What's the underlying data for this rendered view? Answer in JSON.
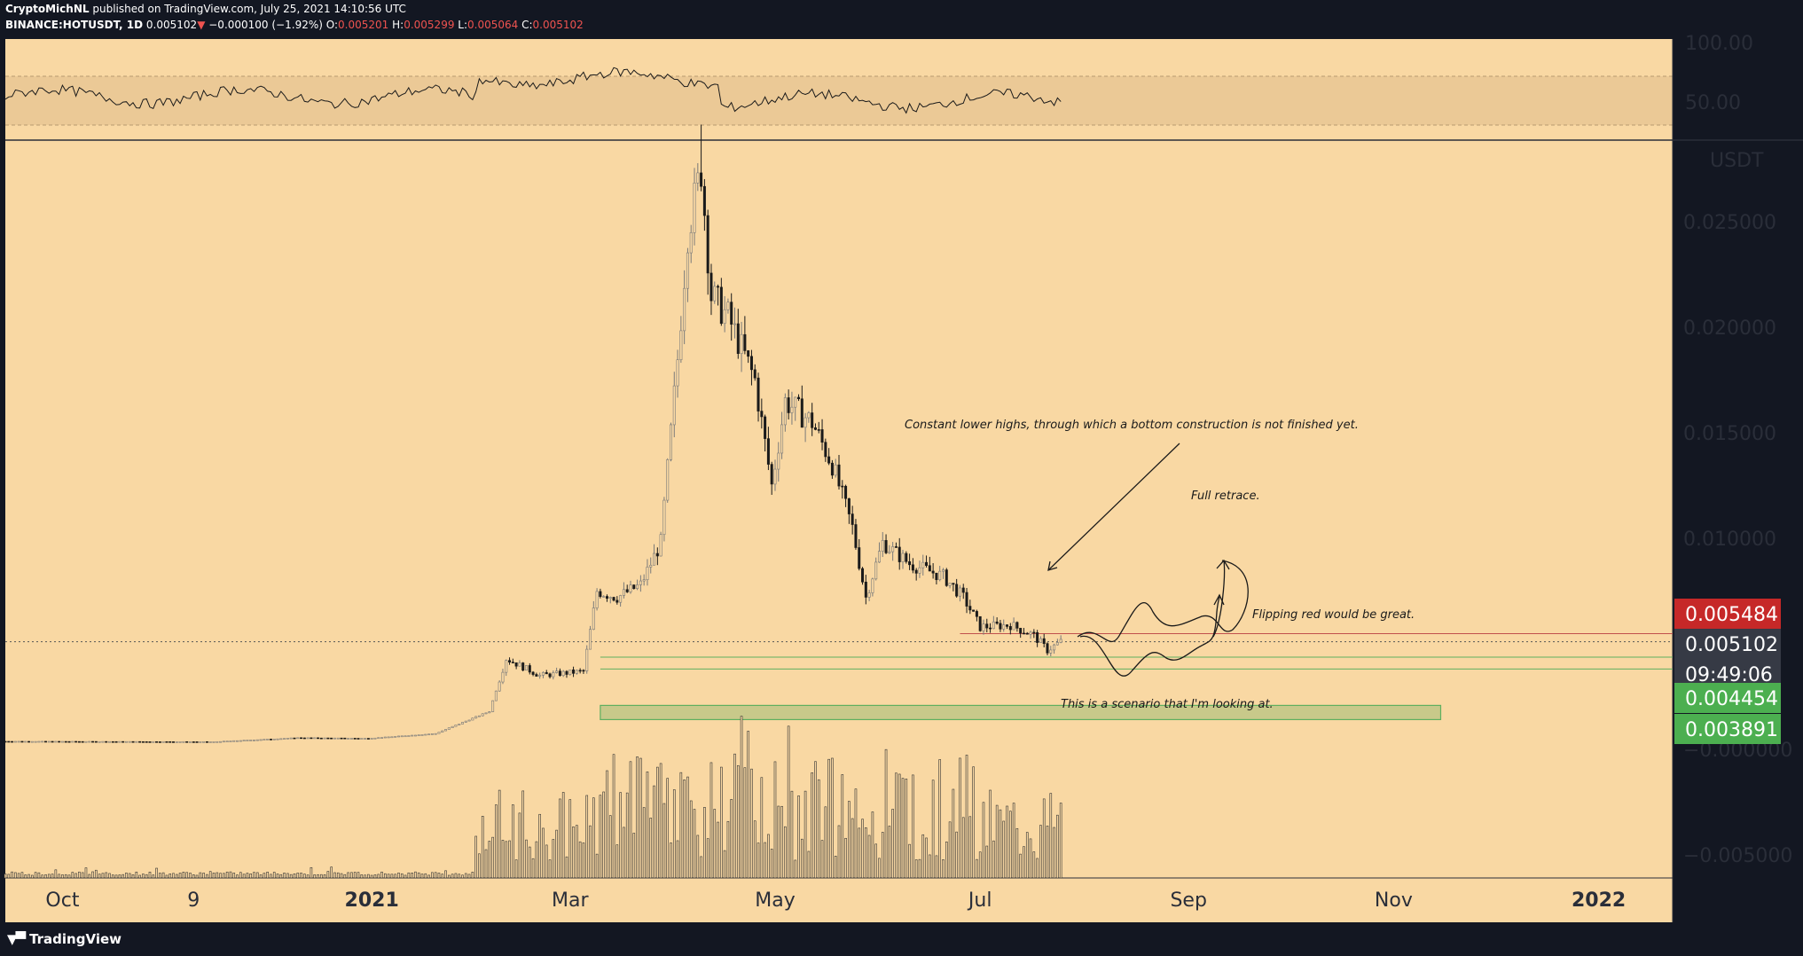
{
  "header": {
    "author": "CryptoMichNL",
    "published": "published on TradingView.com, July 25, 2021 14:10:56 UTC",
    "symbol": "BINANCE:HOTUSDT, 1D",
    "last": "0.005102",
    "change": "−0.000100 (−1.92%)",
    "open_label": "O:",
    "open": "0.005201",
    "high_label": "H:",
    "high": "0.005299",
    "low_label": "L:",
    "low": "0.005064",
    "close_label": "C:",
    "close": "0.005102"
  },
  "footer": {
    "brand": "TradingView"
  },
  "colors": {
    "background": "#f9d8a3",
    "frame": "#131722",
    "last_price_tag": "#363a45",
    "red_tag": "#c62828",
    "green_tag": "#4caf50",
    "zone_fill": "#c8c98a",
    "zone_line": "#5faf5f"
  },
  "chart_data": {
    "type": "candlestick",
    "price_scale_unit": "USDT",
    "y_ticks": [
      "0.025000",
      "0.020000",
      "0.015000",
      "0.010000",
      "−0.000000",
      "−0.005000"
    ],
    "y_tick_values": [
      0.025,
      0.02,
      0.015,
      0.01,
      0.0,
      -0.005
    ],
    "rsi_ticks": [
      "100.00",
      "50.00"
    ],
    "x_tick_labels": [
      {
        "label": "Oct",
        "date": "2020-10-01",
        "bold": false
      },
      {
        "label": "9",
        "date": "2020-11-09",
        "bold": false
      },
      {
        "label": "2021",
        "date": "2021-01-01",
        "bold": true
      },
      {
        "label": "Mar",
        "date": "2021-03-01",
        "bold": false
      },
      {
        "label": "May",
        "date": "2021-05-01",
        "bold": false
      },
      {
        "label": "Jul",
        "date": "2021-07-01",
        "bold": false
      },
      {
        "label": "Sep",
        "date": "2021-09-01",
        "bold": false
      },
      {
        "label": "Nov",
        "date": "2021-11-01",
        "bold": false
      },
      {
        "label": "2022",
        "date": "2022-01-01",
        "bold": true
      }
    ],
    "x_range": [
      "2020-09-14",
      "2022-01-23"
    ],
    "price_points": [
      [
        "2020-09-14",
        0.00038
      ],
      [
        "2020-11-15",
        0.00036
      ],
      [
        "2020-12-10",
        0.00055
      ],
      [
        "2020-12-31",
        0.00052
      ],
      [
        "2021-01-20",
        0.00075
      ],
      [
        "2021-02-05",
        0.0018
      ],
      [
        "2021-02-10",
        0.0043
      ],
      [
        "2021-02-20",
        0.0035
      ],
      [
        "2021-03-05",
        0.0037
      ],
      [
        "2021-03-09",
        0.0075
      ],
      [
        "2021-03-15",
        0.0072
      ],
      [
        "2021-03-22",
        0.0078
      ],
      [
        "2021-03-28",
        0.0098
      ],
      [
        "2021-04-02",
        0.0185
      ],
      [
        "2021-04-05",
        0.0245
      ],
      [
        "2021-04-09",
        0.0275
      ],
      [
        "2021-04-12",
        0.0215
      ],
      [
        "2021-04-17",
        0.0205
      ],
      [
        "2021-04-25",
        0.0175
      ],
      [
        "2021-04-30",
        0.0125
      ],
      [
        "2021-05-04",
        0.0165
      ],
      [
        "2021-05-12",
        0.0155
      ],
      [
        "2021-05-18",
        0.0135
      ],
      [
        "2021-05-24",
        0.0105
      ],
      [
        "2021-05-28",
        0.0072
      ],
      [
        "2021-06-02",
        0.0098
      ],
      [
        "2021-06-10",
        0.0088
      ],
      [
        "2021-06-20",
        0.0082
      ],
      [
        "2021-06-26",
        0.0072
      ],
      [
        "2021-07-01",
        0.0058
      ],
      [
        "2021-07-10",
        0.0059
      ],
      [
        "2021-07-17",
        0.0054
      ],
      [
        "2021-07-21",
        0.0047
      ],
      [
        "2021-07-25",
        0.0051
      ]
    ],
    "spike_high": 0.0296,
    "last_price": 0.005102,
    "price_tags": [
      {
        "label": "0.005484",
        "value": 0.005484,
        "color": "red"
      },
      {
        "label": "0.005102",
        "value": 0.005102,
        "color": "dark"
      },
      {
        "label": "09:49:06",
        "value": 0.005102,
        "color": "dark"
      },
      {
        "label": "0.004454",
        "value": 0.004454,
        "color": "green"
      },
      {
        "label": "0.003891",
        "value": 0.003891,
        "color": "green"
      }
    ],
    "support_zone": {
      "from": 0.00335,
      "to": 0.0041,
      "start": "2021-03-10",
      "end": "2021-11-15"
    },
    "annotations": [
      {
        "id": "note-lower-highs",
        "text": "Constant lower highs, through which a bottom construction is not finished yet."
      },
      {
        "id": "note-full-retrace",
        "text": "Full retrace."
      },
      {
        "id": "note-flipping-red",
        "text": "Flipping red would be great."
      },
      {
        "id": "note-scenario",
        "text": "This is a scenario that I'm looking at."
      }
    ]
  }
}
